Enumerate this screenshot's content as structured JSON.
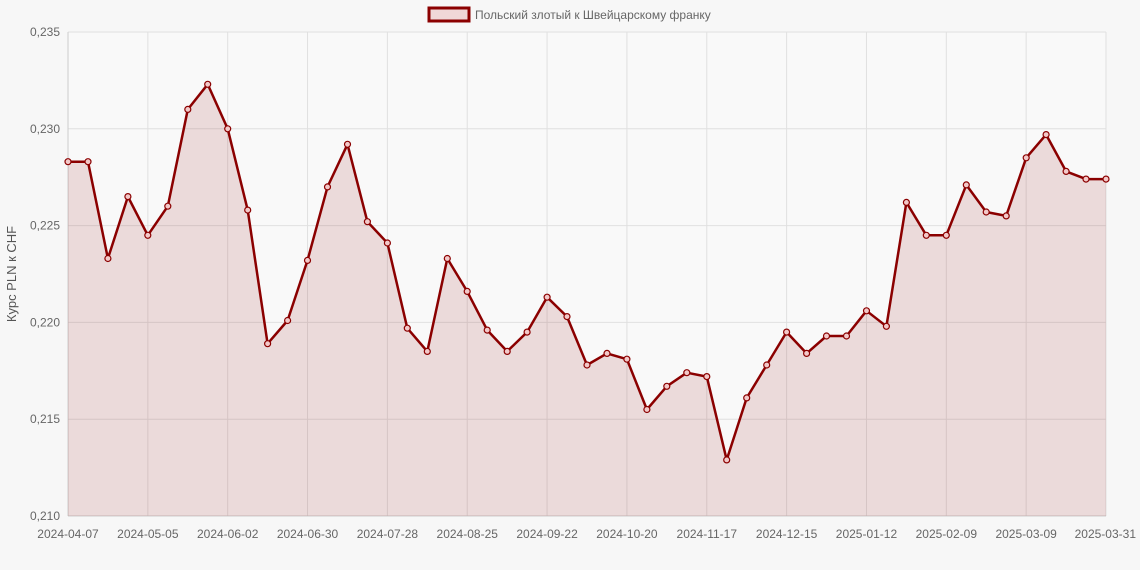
{
  "chart_data": {
    "type": "line",
    "ylabel": "Курс PLN к CHF",
    "xlabel": "",
    "ylim": [
      0.21,
      0.235
    ],
    "y_ticks": [
      "0,210",
      "0,215",
      "0,220",
      "0,225",
      "0,230",
      "0,235"
    ],
    "y_tick_values": [
      0.21,
      0.215,
      0.22,
      0.225,
      0.23,
      0.235
    ],
    "x_tick_labels": [
      "2024-04-07",
      "2024-05-05",
      "2024-06-02",
      "2024-06-30",
      "2024-07-28",
      "2024-08-25",
      "2024-09-22",
      "2024-10-20",
      "2024-11-17",
      "2024-12-15",
      "2025-01-12",
      "2025-02-09",
      "2025-03-09",
      "2025-03-31"
    ],
    "x_tick_index": [
      0,
      4,
      8,
      12,
      16,
      20,
      24,
      28,
      32,
      36,
      40,
      44,
      48,
      52
    ],
    "legend_position": "top-center",
    "grid": true,
    "series": [
      {
        "name": "Польский злотый к Швейцарскому франку",
        "color": "#8b0000",
        "fill": "rgba(139,0,0,0.12)",
        "values": [
          0.2283,
          0.2283,
          0.2233,
          0.2265,
          0.2245,
          0.226,
          0.231,
          0.2323,
          0.23,
          0.2258,
          0.2189,
          0.2201,
          0.2232,
          0.227,
          0.2292,
          0.2252,
          0.2241,
          0.2197,
          0.2185,
          0.2233,
          0.2216,
          0.2196,
          0.2185,
          0.2195,
          0.2213,
          0.2203,
          0.2178,
          0.2184,
          0.2181,
          0.2155,
          0.2167,
          0.2174,
          0.2172,
          0.2129,
          0.2161,
          0.2178,
          0.2195,
          0.2184,
          0.2193,
          0.2193,
          0.2206,
          0.2198,
          0.2262,
          0.2245,
          0.2245,
          0.2271,
          0.2257,
          0.2255,
          0.2285,
          0.2297,
          0.2278,
          0.2274,
          0.2274
        ]
      }
    ]
  }
}
